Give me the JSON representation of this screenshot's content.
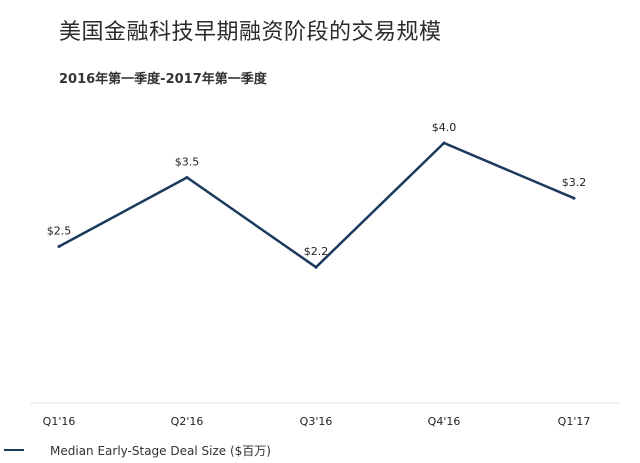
{
  "chart_data": {
    "type": "line",
    "title": "美国金融科技早期融资阶段的交易规模",
    "subtitle": "2016年第一季度-2017年第一季度",
    "categories": [
      "Q1'16",
      "Q2'16",
      "Q3'16",
      "Q4'16",
      "Q1'17"
    ],
    "series": [
      {
        "name": "Median Early-Stage Deal Size ($百万)",
        "values": [
          2.5,
          3.5,
          2.2,
          4.0,
          3.2
        ],
        "labels": [
          "$2.5",
          "$3.5",
          "$2.2",
          "$4.0",
          "$3.2"
        ],
        "color": "#1b3a5e"
      }
    ],
    "xlabel": "",
    "ylabel": "",
    "grid": false,
    "legend_position": "bottom-left"
  }
}
